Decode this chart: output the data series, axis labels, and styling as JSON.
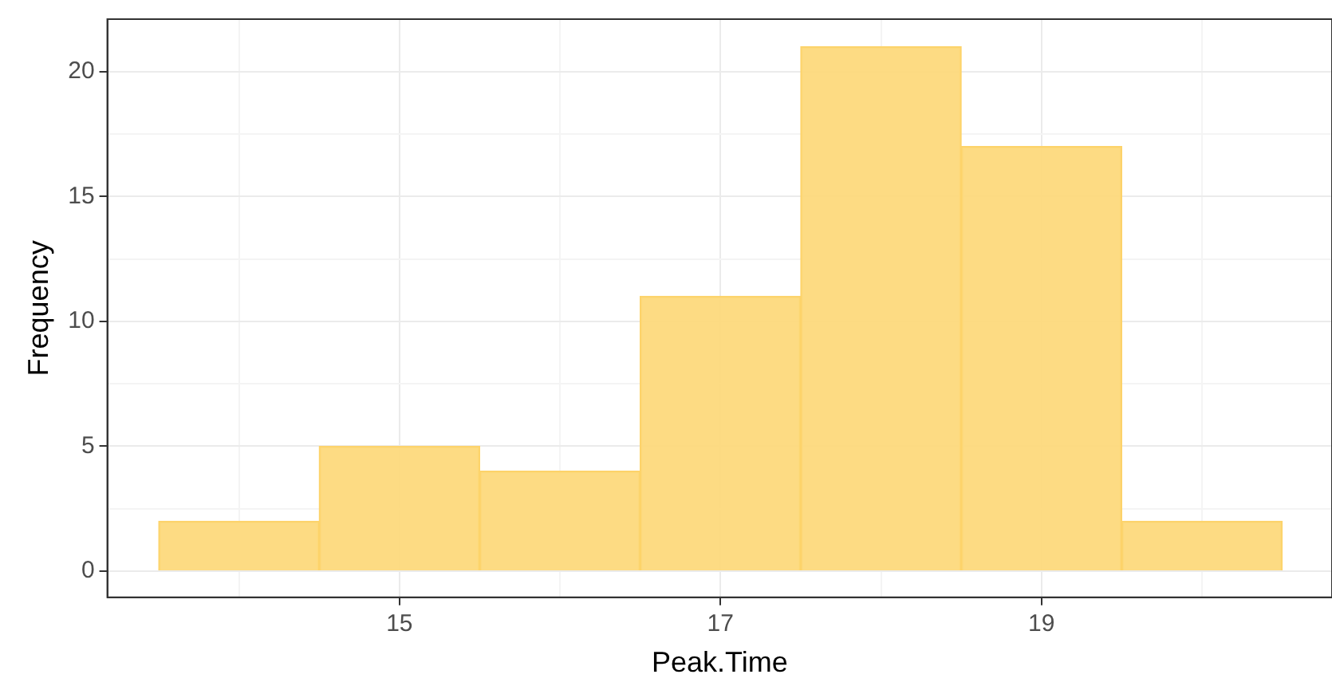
{
  "chart_data": {
    "type": "histogram",
    "xlabel": "Peak.Time",
    "ylabel": "Frequency",
    "bins": [
      13.5,
      14.5,
      15.5,
      16.5,
      17.5,
      18.5,
      19.5,
      20.5
    ],
    "values": [
      2,
      5,
      4,
      11,
      21,
      17,
      2
    ],
    "color": "#fdd97c",
    "xlim": [
      13.18,
      20.81
    ],
    "xticks": [
      {
        "value": 14,
        "label": null
      },
      15,
      {
        "value": 16,
        "label": null
      },
      17,
      {
        "value": 18,
        "label": null
      },
      19,
      {
        "value": 20,
        "label": null
      }
    ],
    "ylim": [
      -1.05,
      22.1
    ],
    "yticks": [
      0,
      {
        "value": 2.5,
        "label": null
      },
      5,
      {
        "value": 7.5,
        "label": null
      },
      10,
      {
        "value": 12.5,
        "label": null
      },
      15,
      {
        "value": 17.5,
        "label": null
      },
      20
    ],
    "grid": true
  }
}
